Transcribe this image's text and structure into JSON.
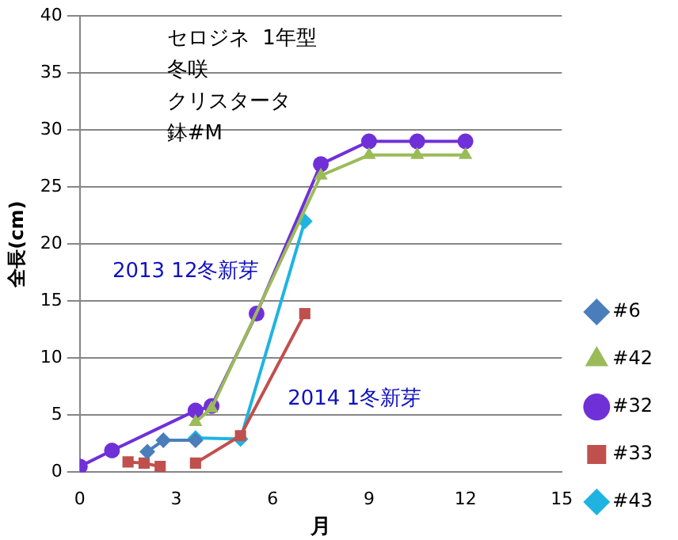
{
  "chart_data": {
    "type": "line",
    "title": "セロジネ  1年型",
    "xlabel": "月",
    "ylabel": "全長(cm)",
    "annotations": [
      "冬咲",
      "クリスタータ",
      "鉢#M",
      "2013 12冬新芽",
      "2014 1冬新芽"
    ],
    "xlim": [
      0,
      15
    ],
    "xticks": [
      0,
      3,
      6,
      9,
      12,
      15
    ],
    "ylim": [
      0,
      40
    ],
    "yticks": [
      0,
      5,
      10,
      15,
      20,
      25,
      30,
      35,
      40
    ],
    "grid": "y",
    "legend": "right",
    "series": [
      {
        "name": "#6",
        "color": "#4a7ebb",
        "marker": "diamond",
        "x": [
          2.1,
          2.6,
          3.6
        ],
        "values": [
          1.8,
          2.8,
          2.8
        ]
      },
      {
        "name": "#42",
        "color": "#9bbb59",
        "marker": "triangle",
        "x": [
          3.6,
          4.1,
          7.5,
          9,
          10.5,
          12
        ],
        "values": [
          4.4,
          5.6,
          26,
          27.8,
          27.8,
          27.8
        ]
      },
      {
        "name": "#32",
        "color": "#7030d8",
        "marker": "circle",
        "x": [
          0,
          1,
          3.6,
          4.1,
          5.5,
          7.5,
          9,
          10.5,
          12
        ],
        "values": [
          0.5,
          1.9,
          5.4,
          5.8,
          13.9,
          27,
          29,
          29,
          29
        ]
      },
      {
        "name": "#33",
        "color": "#c0504d",
        "marker": "square",
        "x": [
          1.5,
          2,
          2.5,
          3,
          3.6,
          5,
          7
        ],
        "values": [
          0.9,
          0.8,
          0.5,
          null,
          0.8,
          3.2,
          13.9
        ]
      },
      {
        "name": "#43",
        "color": "#1fb4e0",
        "marker": "diamond",
        "x": [
          3.6,
          5,
          7
        ],
        "values": [
          3.0,
          2.9,
          22
        ]
      }
    ]
  }
}
